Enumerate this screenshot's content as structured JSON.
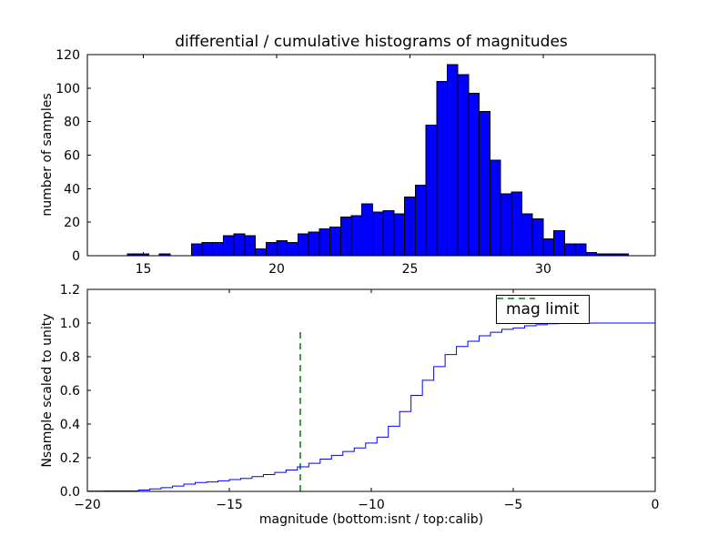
{
  "figure": {
    "background": "#ffffff"
  },
  "chart_data": [
    {
      "type": "bar",
      "subtype": "histogram",
      "title": "differential / cumulative histograms of magnitudes",
      "ylabel": "number of samples",
      "xlabel": "",
      "bin_start": 14.4,
      "bin_width": 0.4,
      "counts": [
        1,
        1,
        0,
        1,
        0,
        0,
        7,
        8,
        8,
        12,
        13,
        12,
        4,
        8,
        9,
        8,
        13,
        14,
        16,
        17,
        23,
        24,
        31,
        26,
        27,
        25,
        35,
        42,
        78,
        104,
        114,
        108,
        97,
        86,
        57,
        37,
        38,
        25,
        22,
        10,
        15,
        7,
        7,
        2,
        1,
        1,
        1
      ],
      "xlim": [
        12.9,
        34.2
      ],
      "ylim": [
        0,
        120
      ],
      "xticks": [
        15,
        20,
        25,
        30
      ],
      "xtick_labels": [
        "15",
        "20",
        "25",
        "30"
      ],
      "yticks": [
        0,
        20,
        40,
        60,
        80,
        100,
        120
      ],
      "ytick_labels": [
        "0",
        "20",
        "40",
        "60",
        "80",
        "100",
        "120"
      ],
      "grid": false,
      "bar_fill": "#0000ff",
      "bar_edge": "#000000"
    },
    {
      "type": "line",
      "subtype": "cumulative-step",
      "title": "",
      "ylabel": "Nsample scaled to unity",
      "xlabel": "magnitude (bottom:isnt / top:calib)",
      "x": [
        -20.6,
        -20.2,
        -19.8,
        -19.4,
        -19.0,
        -18.6,
        -18.2,
        -17.8,
        -17.4,
        -17.0,
        -16.6,
        -16.2,
        -15.8,
        -15.4,
        -15.0,
        -14.6,
        -14.2,
        -13.8,
        -13.4,
        -13.0,
        -12.6,
        -12.2,
        -11.8,
        -11.4,
        -11.0,
        -10.6,
        -10.2,
        -9.8,
        -9.4,
        -9.0,
        -8.6,
        -8.2,
        -7.8,
        -7.4,
        -7.0,
        -6.6,
        -6.2,
        -5.8,
        -5.4,
        -5.0,
        -4.6,
        -4.2,
        -3.8,
        -3.4,
        -3.0,
        -2.6,
        -2.2,
        0.0
      ],
      "y": [
        0.001,
        0.002,
        0.002,
        0.003,
        0.003,
        0.003,
        0.008,
        0.015,
        0.022,
        0.032,
        0.043,
        0.053,
        0.056,
        0.063,
        0.07,
        0.077,
        0.088,
        0.1,
        0.113,
        0.127,
        0.146,
        0.167,
        0.192,
        0.214,
        0.237,
        0.258,
        0.287,
        0.322,
        0.387,
        0.474,
        0.57,
        0.66,
        0.741,
        0.813,
        0.861,
        0.892,
        0.924,
        0.945,
        0.963,
        0.971,
        0.984,
        0.99,
        0.996,
        0.997,
        0.998,
        0.999,
        1.0,
        1.0
      ],
      "xlim": [
        -20,
        0
      ],
      "ylim": [
        0,
        1.2
      ],
      "xticks": [
        -20,
        -15,
        -10,
        -5,
        0
      ],
      "xtick_labels": [
        "−20",
        "−15",
        "−10",
        "−5",
        "0"
      ],
      "yticks": [
        0.0,
        0.2,
        0.4,
        0.6,
        0.8,
        1.0,
        1.2
      ],
      "ytick_labels": [
        "0.0",
        "0.2",
        "0.4",
        "0.6",
        "0.8",
        "1.0",
        "1.2"
      ],
      "grid": false,
      "line_color": "#0000ff",
      "mag_limit": {
        "x": -12.5,
        "y_bottom": 0.0,
        "y_top": 0.96,
        "color": "#008000",
        "style": "dashed"
      },
      "legend": {
        "label": "mag limit",
        "position": "upper right",
        "line_color": "#008000"
      }
    }
  ]
}
